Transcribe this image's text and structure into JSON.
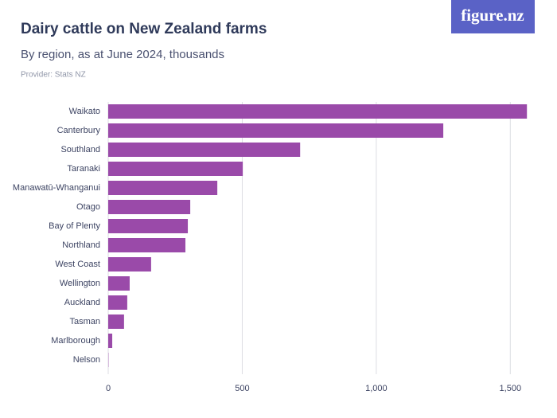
{
  "brand": "figure.nz",
  "chart_data": {
    "type": "hbar",
    "title": "Dairy cattle on New Zealand farms",
    "subtitle": "By region, as at June 2024, thousands",
    "source": "Provider: Stats NZ",
    "categories": [
      "Waikato",
      "Canterbury",
      "Southland",
      "Taranaki",
      "Manawatū-Whanganui",
      "Otago",
      "Bay of Plenty",
      "Northland",
      "West Coast",
      "Wellington",
      "Auckland",
      "Tasman",
      "Marlborough",
      "Nelson"
    ],
    "values": [
      1562,
      1250,
      716,
      502,
      407,
      306,
      297,
      288,
      160,
      80,
      71,
      59,
      15,
      1
    ],
    "color": "#9a4aa9",
    "xlim": [
      0,
      1600
    ],
    "xticks": [
      0,
      500,
      {
        "value": 1000,
        "label": "1,000"
      },
      {
        "value": 1500,
        "label": "1,500"
      }
    ],
    "grid": true
  }
}
